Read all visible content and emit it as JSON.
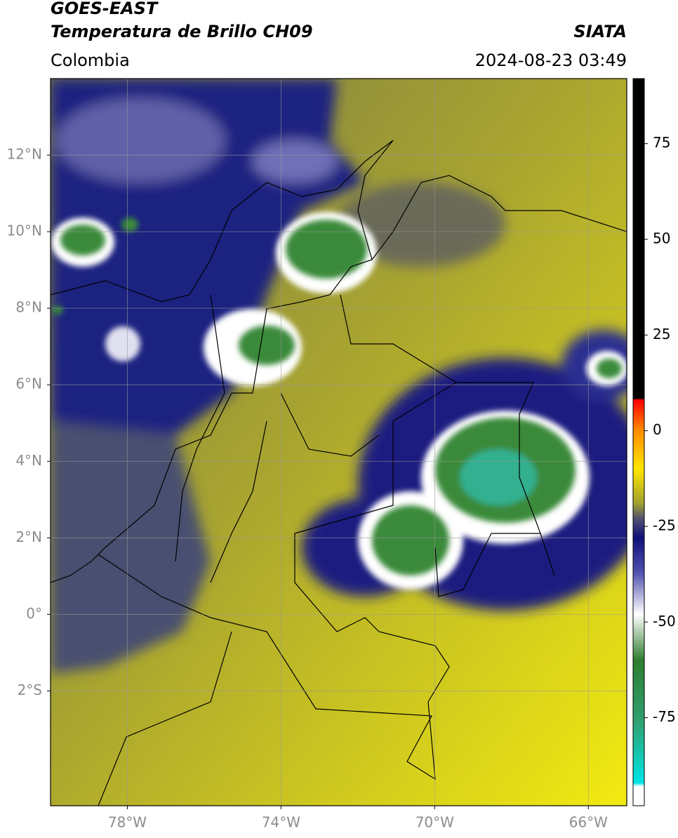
{
  "header": {
    "title": "GOES-EAST",
    "subtitle": "Temperatura de Brillo CH09",
    "region": "Colombia",
    "source": "SIATA",
    "datetime": "2024-08-23 03:49"
  },
  "map": {
    "xlim": [
      -80,
      -65
    ],
    "ylim": [
      -5,
      14
    ],
    "xticks": [
      {
        "value": -78,
        "label": "78°W"
      },
      {
        "value": -74,
        "label": "74°W"
      },
      {
        "value": -70,
        "label": "70°W"
      },
      {
        "value": -66,
        "label": "66°W"
      }
    ],
    "yticks": [
      {
        "value": 12,
        "label": "12°N"
      },
      {
        "value": 10,
        "label": "10°N"
      },
      {
        "value": 8,
        "label": "8°N"
      },
      {
        "value": 6,
        "label": "6°N"
      },
      {
        "value": 4,
        "label": "4°N"
      },
      {
        "value": 2,
        "label": "2°N"
      },
      {
        "value": 0,
        "label": "0°"
      },
      {
        "value": -2,
        "label": "2°S"
      }
    ],
    "grid": true
  },
  "colorbar": {
    "clim": [
      -98,
      92
    ],
    "ticks": [
      75,
      50,
      25,
      0,
      -25,
      -50,
      -75
    ],
    "stops": [
      {
        "value": 92,
        "color": "#000000"
      },
      {
        "value": 8.5,
        "color": "#000000"
      },
      {
        "value": 8,
        "color": "#ff0000"
      },
      {
        "value": 0,
        "color": "#ff8c00"
      },
      {
        "value": -10,
        "color": "#ffe600"
      },
      {
        "value": -19,
        "color": "#a0a030"
      },
      {
        "value": -23,
        "color": "#505070"
      },
      {
        "value": -28,
        "color": "#10107a"
      },
      {
        "value": -37,
        "color": "#5050b0"
      },
      {
        "value": -48,
        "color": "#ffffff"
      },
      {
        "value": -60,
        "color": "#2e7d2e"
      },
      {
        "value": -76,
        "color": "#30a070"
      },
      {
        "value": -92,
        "color": "#00e5e5"
      },
      {
        "value": -93,
        "color": "#ffffff"
      },
      {
        "value": -98,
        "color": "#ffffff"
      }
    ]
  }
}
